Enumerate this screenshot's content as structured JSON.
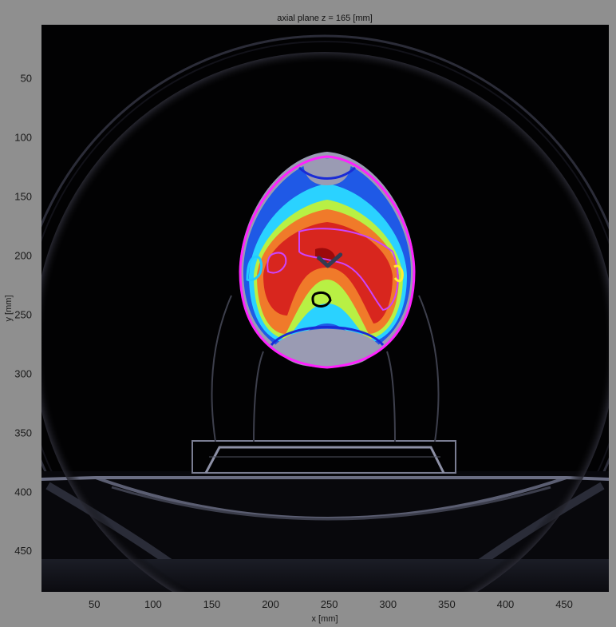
{
  "chart_data": {
    "type": "heatmap",
    "title": "axial plane z = 165 [mm]",
    "xlabel": "x [mm]",
    "ylabel": "y [mm]",
    "xlim": [
      5,
      488
    ],
    "ylim": [
      485,
      5
    ],
    "xticks": [
      50,
      100,
      150,
      200,
      250,
      300,
      350,
      400,
      450
    ],
    "yticks": [
      50,
      100,
      150,
      200,
      250,
      300,
      350,
      400,
      450
    ],
    "background": "CT slice (grayscale)",
    "overlay": "dose colorwash (jet colormap)",
    "grid": false,
    "isocenter_marker": {
      "x": 250,
      "y": 205
    },
    "contours": [
      {
        "color": "#ff22ff",
        "description": "outer magenta contour"
      },
      {
        "color": "#1a2bd6",
        "description": "blue contour"
      },
      {
        "color": "#cc44ff",
        "description": "inner magenta contour"
      },
      {
        "color": "#22ccff",
        "description": "cyan contour"
      },
      {
        "color": "#ffee33",
        "description": "yellow contour"
      },
      {
        "color": "#000000",
        "description": "black contour"
      }
    ]
  }
}
